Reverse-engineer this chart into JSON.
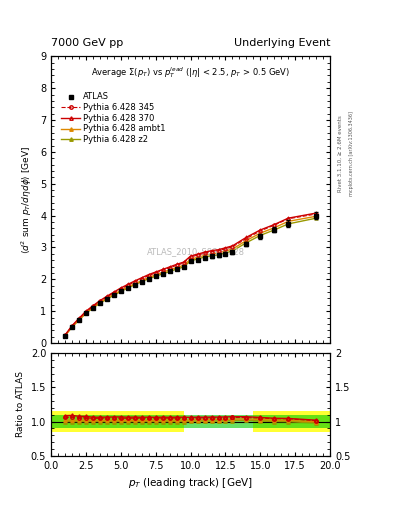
{
  "title_left": "7000 GeV pp",
  "title_right": "Underlying Event",
  "subtitle": "Average $\\Sigma(p_T)$ vs $p_T^{lead}$ ($|\\eta|$ < 2.5, $p_T$ > 0.5 GeV)",
  "watermark": "ATLAS_2010_S8894728",
  "rivet_text": "Rivet 3.1.10, ≥ 2.6M events",
  "mcplots_text": "mcplots.cern.ch [arXiv:1306.3436]",
  "xlabel": "$p_T$ (leading track) [GeV]",
  "ylabel": "$\\langle d^2$ sum $p_T/d\\eta d\\phi\\rangle$ [GeV]",
  "ylabel_ratio": "Ratio to ATLAS",
  "xlim": [
    0,
    20
  ],
  "ylim": [
    0,
    9
  ],
  "ylim_ratio": [
    0.5,
    2
  ],
  "atlas_x": [
    1.0,
    1.5,
    2.0,
    2.5,
    3.0,
    3.5,
    4.0,
    4.5,
    5.0,
    5.5,
    6.0,
    6.5,
    7.0,
    7.5,
    8.0,
    8.5,
    9.0,
    9.5,
    10.0,
    10.5,
    11.0,
    11.5,
    12.0,
    12.5,
    13.0,
    14.0,
    15.0,
    16.0,
    17.0,
    19.0
  ],
  "atlas_y": [
    0.23,
    0.5,
    0.72,
    0.93,
    1.1,
    1.25,
    1.38,
    1.5,
    1.62,
    1.73,
    1.83,
    1.93,
    2.02,
    2.1,
    2.17,
    2.25,
    2.32,
    2.39,
    2.57,
    2.62,
    2.68,
    2.72,
    2.75,
    2.8,
    2.85,
    3.1,
    3.35,
    3.55,
    3.75,
    4.0
  ],
  "atlas_yerr": [
    0.01,
    0.01,
    0.01,
    0.01,
    0.01,
    0.01,
    0.01,
    0.01,
    0.02,
    0.02,
    0.02,
    0.02,
    0.02,
    0.02,
    0.03,
    0.03,
    0.03,
    0.03,
    0.04,
    0.04,
    0.04,
    0.04,
    0.05,
    0.05,
    0.05,
    0.06,
    0.08,
    0.08,
    0.1,
    0.12
  ],
  "p345_x": [
    1.0,
    1.5,
    2.0,
    2.5,
    3.0,
    3.5,
    4.0,
    4.5,
    5.0,
    5.5,
    6.0,
    6.5,
    7.0,
    7.5,
    8.0,
    8.5,
    9.0,
    9.5,
    10.0,
    10.5,
    11.0,
    11.5,
    12.0,
    12.5,
    13.0,
    14.0,
    15.0,
    16.0,
    17.0,
    19.0
  ],
  "p345_y": [
    0.245,
    0.53,
    0.76,
    0.98,
    1.15,
    1.31,
    1.45,
    1.58,
    1.7,
    1.81,
    1.92,
    2.02,
    2.12,
    2.2,
    2.28,
    2.36,
    2.44,
    2.51,
    2.7,
    2.76,
    2.82,
    2.87,
    2.9,
    2.96,
    3.02,
    3.28,
    3.52,
    3.7,
    3.9,
    4.05
  ],
  "p370_x": [
    1.0,
    1.5,
    2.0,
    2.5,
    3.0,
    3.5,
    4.0,
    4.5,
    5.0,
    5.5,
    6.0,
    6.5,
    7.0,
    7.5,
    8.0,
    8.5,
    9.0,
    9.5,
    10.0,
    10.5,
    11.0,
    11.5,
    12.0,
    12.5,
    13.0,
    14.0,
    15.0,
    16.0,
    17.0,
    19.0
  ],
  "p370_y": [
    0.25,
    0.545,
    0.775,
    1.0,
    1.17,
    1.33,
    1.47,
    1.6,
    1.73,
    1.84,
    1.95,
    2.05,
    2.15,
    2.23,
    2.31,
    2.39,
    2.47,
    2.54,
    2.73,
    2.79,
    2.85,
    2.9,
    2.93,
    2.99,
    3.05,
    3.32,
    3.55,
    3.72,
    3.92,
    4.08
  ],
  "pambt1_x": [
    1.0,
    1.5,
    2.0,
    2.5,
    3.0,
    3.5,
    4.0,
    4.5,
    5.0,
    5.5,
    6.0,
    6.5,
    7.0,
    7.5,
    8.0,
    8.5,
    9.0,
    9.5,
    10.0,
    10.5,
    11.0,
    11.5,
    12.0,
    12.5,
    13.0,
    14.0,
    15.0,
    16.0,
    17.0,
    19.0
  ],
  "pambt1_y": [
    0.235,
    0.51,
    0.735,
    0.95,
    1.12,
    1.27,
    1.41,
    1.53,
    1.65,
    1.76,
    1.86,
    1.96,
    2.06,
    2.14,
    2.22,
    2.3,
    2.37,
    2.44,
    2.63,
    2.69,
    2.75,
    2.8,
    2.83,
    2.89,
    2.95,
    3.22,
    3.45,
    3.62,
    3.82,
    3.98
  ],
  "pz2_x": [
    1.0,
    1.5,
    2.0,
    2.5,
    3.0,
    3.5,
    4.0,
    4.5,
    5.0,
    5.5,
    6.0,
    6.5,
    7.0,
    7.5,
    8.0,
    8.5,
    9.0,
    9.5,
    10.0,
    10.5,
    11.0,
    11.5,
    12.0,
    12.5,
    13.0,
    14.0,
    15.0,
    16.0,
    17.0,
    19.0
  ],
  "pz2_y": [
    0.23,
    0.5,
    0.72,
    0.93,
    1.1,
    1.25,
    1.38,
    1.5,
    1.62,
    1.73,
    1.83,
    1.93,
    2.02,
    2.1,
    2.17,
    2.25,
    2.32,
    2.39,
    2.58,
    2.64,
    2.7,
    2.74,
    2.77,
    2.83,
    2.89,
    3.15,
    3.38,
    3.55,
    3.74,
    3.92
  ],
  "color_345": "#cc0000",
  "color_370": "#cc0000",
  "color_ambt1": "#dd8800",
  "color_z2": "#999900",
  "bg_color": "#ffffff",
  "band_yellow_lo": 0.85,
  "band_yellow_hi": 1.15,
  "band_green_lo": 0.9,
  "band_green_hi": 1.1,
  "band1_xmin": 0.0,
  "band1_xmax": 0.475,
  "band2_xmin": 0.475,
  "band2_xmax": 0.725,
  "band3_xmin": 0.725,
  "band3_xmax": 1.0
}
